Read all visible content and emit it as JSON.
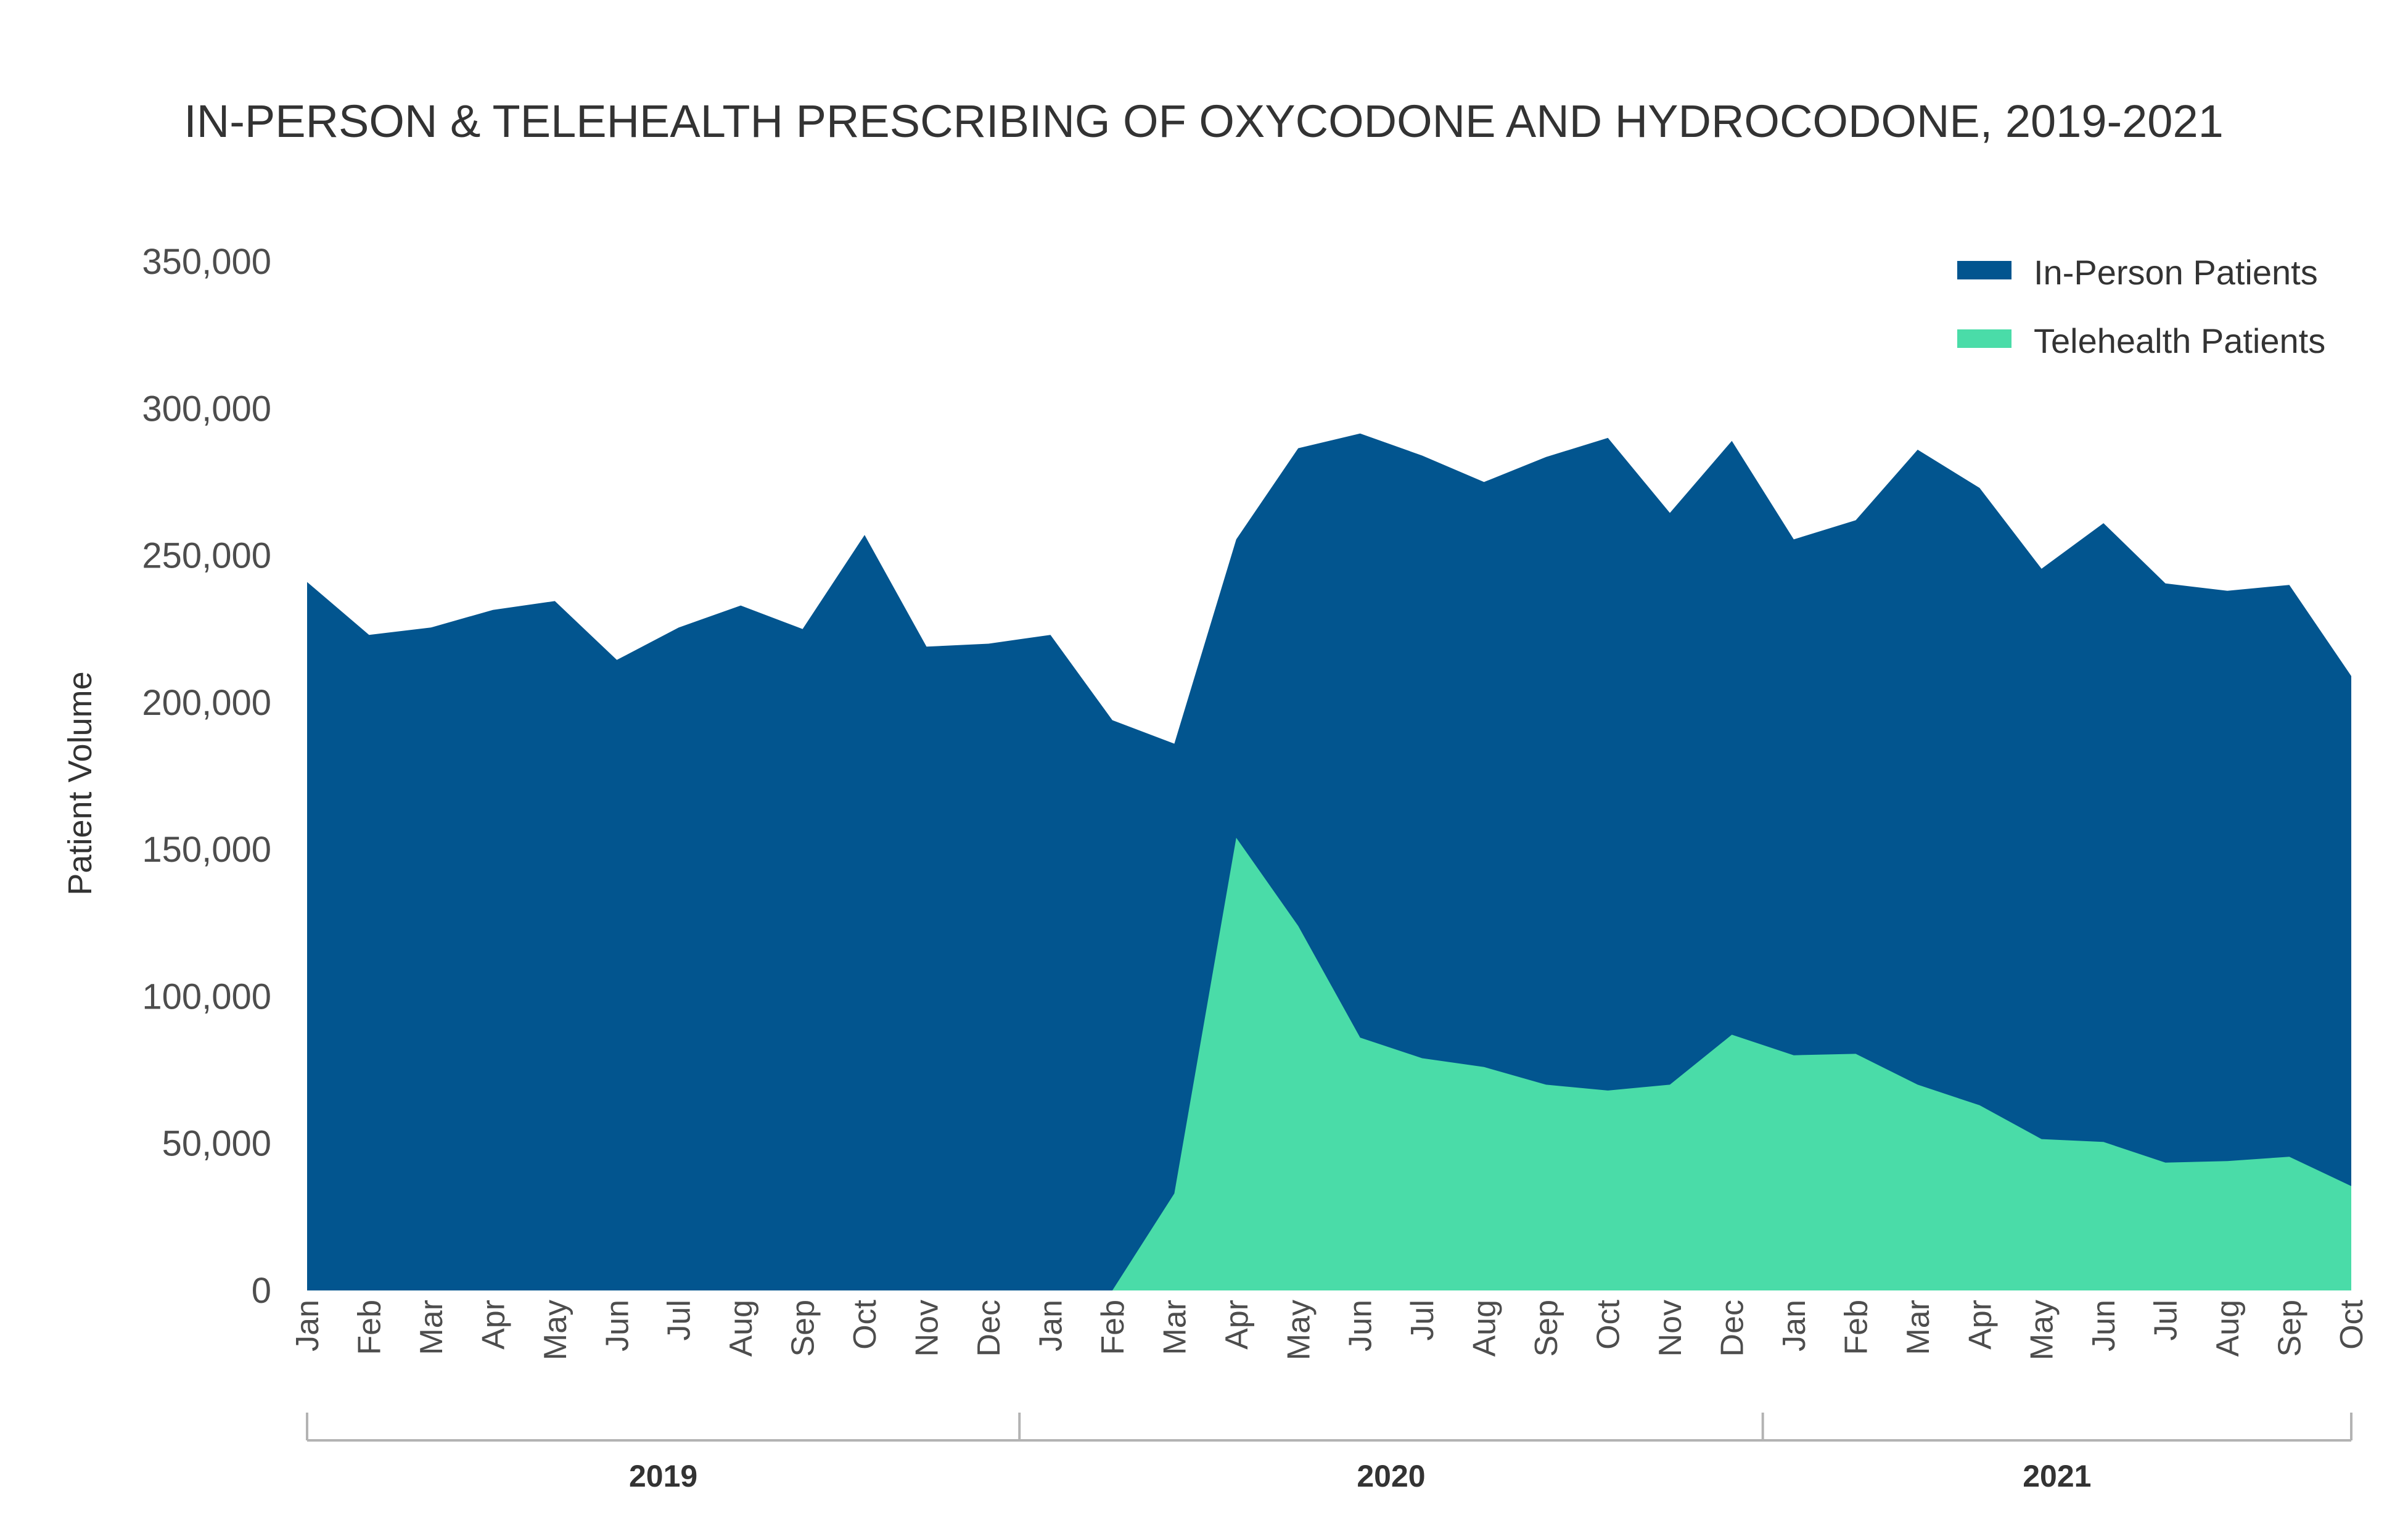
{
  "chart_data": {
    "type": "area",
    "stacked": false,
    "title": "IN-PERSON & TELEHEALTH PRESCRIBING OF OXYCODONE AND HYDROCODONE, 2019-2021",
    "ylabel": "Patient Volume",
    "ylim": [
      0,
      350000
    ],
    "yticks": [
      0,
      50000,
      100000,
      150000,
      200000,
      250000,
      300000,
      350000
    ],
    "ytick_labels": [
      "0",
      "50,000",
      "100,000",
      "150,000",
      "200,000",
      "250,000",
      "300,000",
      "350,000"
    ],
    "categories": [
      "Jan",
      "Feb",
      "Mar",
      "Apr",
      "May",
      "Jun",
      "Jul",
      "Aug",
      "Sep",
      "Oct",
      "Nov",
      "Dec",
      "Jan",
      "Feb",
      "Mar",
      "Apr",
      "May",
      "Jun",
      "Jul",
      "Aug",
      "Sep",
      "Oct",
      "Nov",
      "Dec",
      "Jan",
      "Feb",
      "Mar",
      "Apr",
      "May",
      "Jun",
      "Jul",
      "Aug",
      "Sep",
      "Oct"
    ],
    "year_groups": [
      {
        "label": "2019",
        "start": 0,
        "end": 11
      },
      {
        "label": "2020",
        "start": 12,
        "end": 23
      },
      {
        "label": "2021",
        "start": 24,
        "end": 33
      }
    ],
    "legend_position": "top-right",
    "grid": false,
    "series": [
      {
        "name": "In-Person Patients",
        "color": "#02558f",
        "values": [
          241000,
          223000,
          225500,
          231500,
          234500,
          214500,
          225500,
          233000,
          225000,
          257000,
          219000,
          220000,
          223000,
          194000,
          186000,
          255500,
          286500,
          291500,
          284000,
          275000,
          283500,
          290000,
          264500,
          289000,
          255500,
          262000,
          286000,
          273000,
          245500,
          261000,
          240500,
          238000,
          240000,
          209000
        ]
      },
      {
        "name": "Telehealth Patients",
        "color": "#4adca8",
        "values": [
          0,
          0,
          0,
          0,
          0,
          0,
          0,
          0,
          0,
          0,
          0,
          0,
          0,
          0,
          33000,
          154000,
          124000,
          86000,
          79000,
          76000,
          70000,
          68000,
          70000,
          87000,
          80000,
          80500,
          70000,
          63000,
          51500,
          50500,
          43500,
          44000,
          45500,
          35500
        ]
      }
    ]
  }
}
